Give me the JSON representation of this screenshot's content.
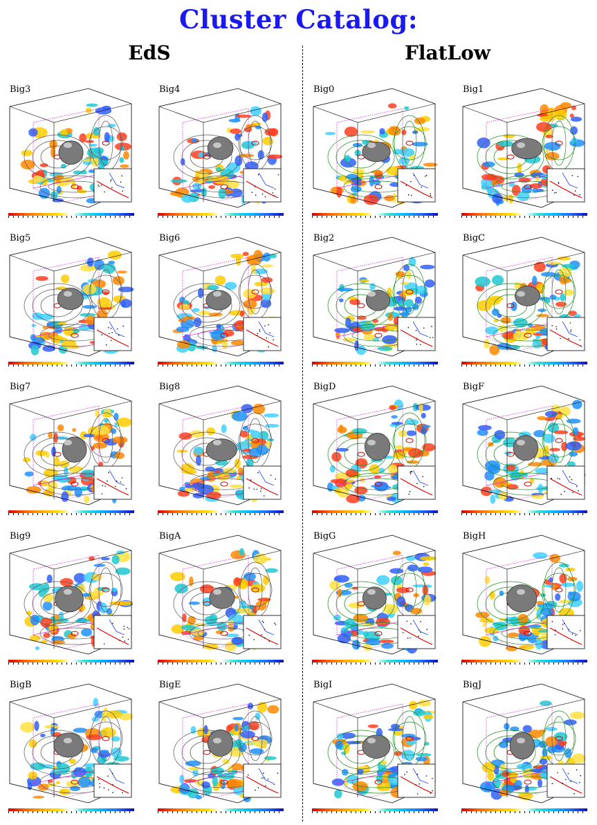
{
  "title": "Cluster Catalog:",
  "columns": [
    {
      "heading": "EdS",
      "panels": [
        "Big3",
        "Big4",
        "Big5",
        "Big6",
        "Big7",
        "Big8",
        "Big9",
        "BigA",
        "BigB",
        "BigE"
      ]
    },
    {
      "heading": "FlatLow",
      "panels": [
        "Big0",
        "Big1",
        "Big2",
        "BigC",
        "BigD",
        "BigF",
        "BigG",
        "BigH",
        "BigI",
        "BigJ"
      ]
    }
  ],
  "colors": {
    "title": "#1a1aee",
    "frame_magenta": "#e020e0",
    "contour_green": "#1a8a1a",
    "blob_gray": "#7a7a7a"
  }
}
